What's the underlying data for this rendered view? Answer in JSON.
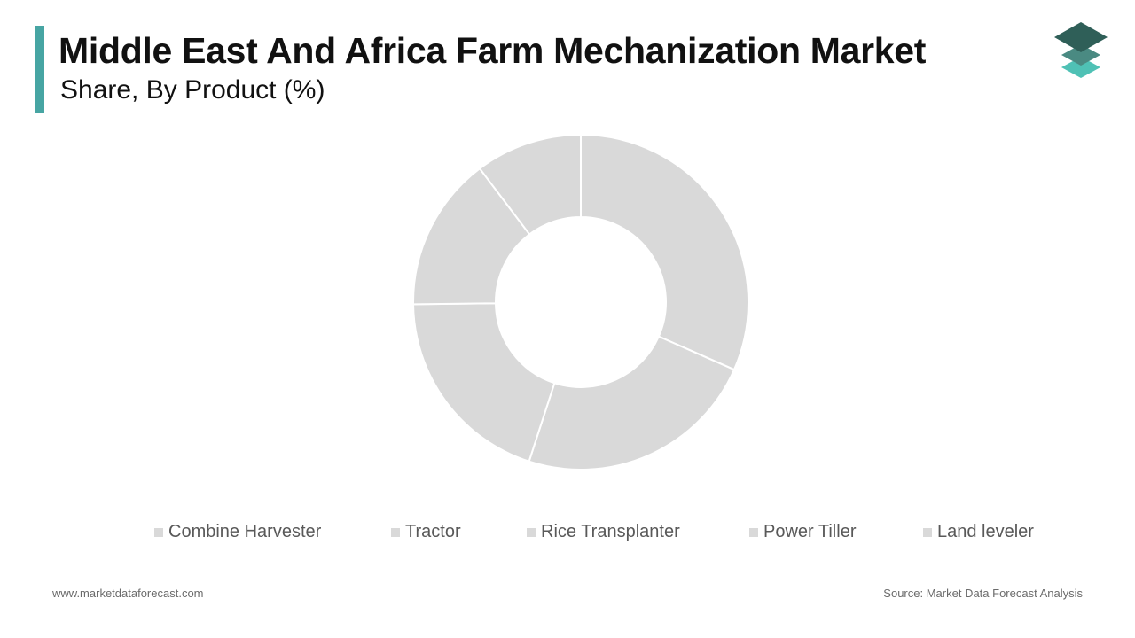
{
  "colors": {
    "accent": "#47a5a3",
    "slice": "#d9d9d9",
    "slice_border": "#ffffff",
    "logo_top": "#2f5f58",
    "logo_mid": "#4a8a82",
    "logo_bottom": "#4fc1b5"
  },
  "header": {
    "title": "Middle East And Africa Farm Mechanization Market",
    "subtitle": "Share, By Product (%)"
  },
  "logo": {
    "icon": "stacked-layers-icon"
  },
  "chart_data": {
    "type": "pie",
    "donut": true,
    "categories": [
      "Combine Harvester",
      "Tractor",
      "Rice Transplanter",
      "Power Tiller",
      "Land leveler"
    ],
    "values": [
      31.6,
      23.4,
      19.8,
      14.9,
      10.3
    ],
    "legend_position": "bottom"
  },
  "footer": {
    "website": "www.marketdataforecast.com",
    "source": "Source: Market Data Forecast Analysis"
  }
}
